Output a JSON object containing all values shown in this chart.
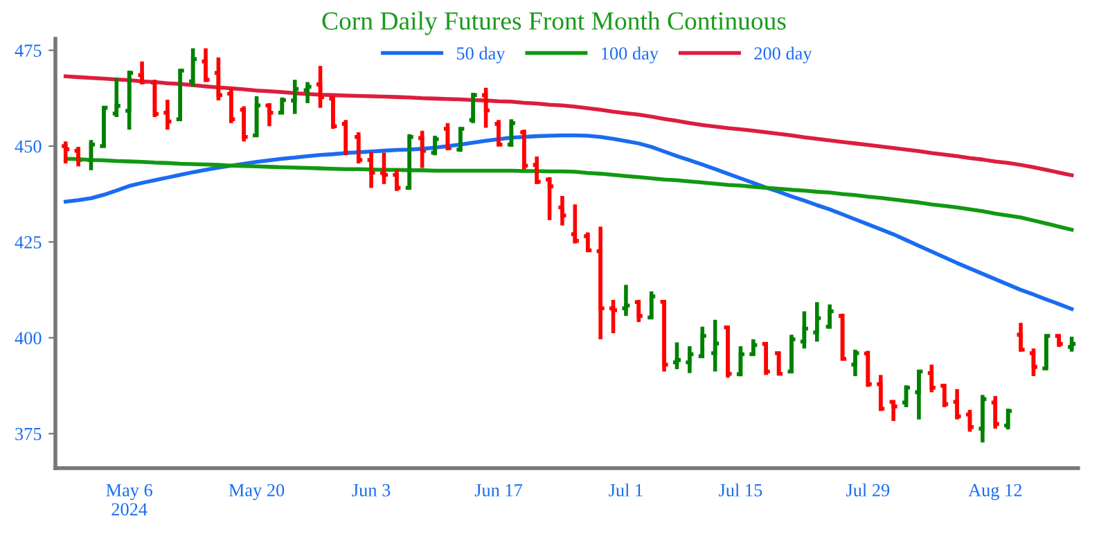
{
  "chart_data": {
    "type": "candlestick",
    "title": "Corn Daily Futures Front Month Continuous",
    "categories": [
      null,
      null,
      null,
      null,
      null,
      "May 6\n2024",
      null,
      null,
      null,
      null,
      null,
      null,
      null,
      null,
      null,
      "May 20",
      null,
      null,
      null,
      null,
      null,
      null,
      null,
      null,
      "Jun 3",
      null,
      null,
      null,
      null,
      null,
      null,
      null,
      null,
      null,
      "Jun 17",
      null,
      null,
      null,
      null,
      null,
      null,
      null,
      null,
      null,
      "Jul 1",
      null,
      null,
      null,
      null,
      null,
      null,
      null,
      null,
      "Jul 15",
      null,
      null,
      null,
      null,
      null,
      null,
      null,
      null,
      null,
      "Jul 29",
      null,
      null,
      null,
      null,
      null,
      null,
      null,
      null,
      null,
      "Aug 12",
      null,
      null,
      null,
      null,
      null,
      null
    ],
    "ohlc": [
      [
        450.0,
        451.2,
        445.5,
        449.2
      ],
      [
        448.8,
        449.8,
        444.7,
        446.4
      ],
      [
        446.4,
        451.6,
        443.7,
        450.4
      ],
      [
        450.0,
        460.3,
        449.8,
        460.0
      ],
      [
        458.5,
        467.9,
        457.6,
        460.5
      ],
      [
        459.2,
        469.7,
        454.3,
        469.1
      ],
      [
        468.5,
        472.1,
        466.1,
        466.7
      ],
      [
        466.6,
        467.3,
        457.6,
        458.4
      ],
      [
        458.7,
        462.1,
        454.3,
        456.4
      ],
      [
        457.0,
        470.1,
        456.8,
        469.7
      ],
      [
        466.9,
        475.5,
        465.5,
        472.7
      ],
      [
        472.1,
        475.5,
        466.7,
        467.3
      ],
      [
        469.1,
        473.1,
        461.9,
        463.3
      ],
      [
        463.7,
        465.1,
        456.0,
        457.0
      ],
      [
        459.5,
        460.4,
        451.2,
        452.4
      ],
      [
        452.8,
        463.0,
        452.4,
        460.6
      ],
      [
        460.6,
        461.2,
        455.2,
        458.7
      ],
      [
        458.7,
        462.7,
        458.4,
        462.0
      ],
      [
        461.9,
        467.3,
        458.4,
        464.9
      ],
      [
        464.6,
        466.7,
        461.2,
        465.5
      ],
      [
        466.1,
        470.9,
        460.0,
        462.8
      ],
      [
        462.4,
        463.0,
        454.5,
        455.2
      ],
      [
        455.8,
        456.8,
        447.6,
        448.3
      ],
      [
        452.4,
        453.6,
        445.5,
        446.4
      ],
      [
        446.4,
        448.5,
        439.1,
        443.1
      ],
      [
        443.0,
        448.3,
        440.1,
        442.5
      ],
      [
        442.5,
        443.9,
        438.3,
        439.1
      ],
      [
        439.1,
        453.1,
        438.9,
        452.4
      ],
      [
        452.1,
        454.0,
        444.3,
        448.8
      ],
      [
        448.3,
        452.7,
        447.6,
        451.8
      ],
      [
        454.5,
        456.0,
        448.9,
        449.5
      ],
      [
        449.1,
        454.8,
        448.5,
        454.5
      ],
      [
        456.8,
        463.9,
        456.0,
        463.3
      ],
      [
        463.3,
        465.2,
        454.8,
        459.3
      ],
      [
        455.8,
        456.8,
        449.9,
        450.4
      ],
      [
        450.4,
        457.0,
        449.8,
        456.0
      ],
      [
        453.6,
        454.3,
        443.9,
        444.9
      ],
      [
        445.1,
        447.3,
        440.1,
        440.7
      ],
      [
        441.3,
        441.9,
        430.7,
        439.5
      ],
      [
        434.0,
        437.0,
        429.3,
        431.9
      ],
      [
        427.0,
        434.8,
        424.6,
        425.3
      ],
      [
        426.5,
        427.5,
        422.5,
        422.8
      ],
      [
        422.6,
        429.0,
        399.6,
        407.7
      ],
      [
        407.7,
        409.9,
        401.2,
        407.2
      ],
      [
        407.7,
        413.8,
        405.7,
        408.4
      ],
      [
        409.3,
        409.9,
        404.1,
        405.7
      ],
      [
        405.3,
        412.1,
        405.1,
        410.8
      ],
      [
        409.4,
        409.9,
        391.2,
        393.0
      ],
      [
        393.6,
        398.8,
        391.8,
        394.2
      ],
      [
        393.6,
        397.8,
        390.8,
        395.7
      ],
      [
        395.2,
        402.9,
        394.8,
        400.5
      ],
      [
        396.0,
        404.7,
        391.2,
        398.5
      ],
      [
        402.7,
        402.9,
        389.6,
        390.6
      ],
      [
        390.5,
        397.8,
        390.0,
        395.7
      ],
      [
        395.7,
        399.6,
        395.4,
        398.1
      ],
      [
        398.4,
        398.8,
        390.3,
        391.2
      ],
      [
        396.0,
        396.4,
        390.3,
        390.6
      ],
      [
        391.2,
        400.8,
        390.8,
        399.6
      ],
      [
        399.0,
        406.9,
        397.2,
        402.4
      ],
      [
        401.4,
        409.3,
        399.0,
        405.1
      ],
      [
        402.9,
        408.7,
        402.4,
        406.9
      ],
      [
        405.7,
        406.3,
        394.2,
        394.5
      ],
      [
        393.0,
        396.9,
        390.0,
        396.0
      ],
      [
        395.9,
        396.6,
        387.2,
        387.9
      ],
      [
        387.9,
        390.3,
        380.9,
        381.5
      ],
      [
        383.3,
        383.6,
        378.3,
        382.1
      ],
      [
        383.1,
        387.6,
        381.9,
        387.0
      ],
      [
        385.8,
        391.6,
        378.7,
        391.2
      ],
      [
        390.8,
        393.0,
        385.8,
        387.0
      ],
      [
        387.5,
        387.9,
        381.9,
        382.7
      ],
      [
        383.3,
        386.6,
        378.7,
        379.5
      ],
      [
        380.0,
        381.2,
        375.5,
        376.7
      ],
      [
        376.3,
        385.1,
        372.7,
        384.0
      ],
      [
        383.1,
        384.8,
        376.3,
        377.5
      ],
      [
        377.1,
        381.5,
        376.1,
        380.9
      ],
      [
        400.8,
        403.9,
        396.4,
        396.9
      ],
      [
        396.0,
        397.2,
        390.0,
        392.4
      ],
      [
        392.0,
        400.5,
        391.8,
        400.5
      ],
      [
        400.5,
        400.8,
        397.6,
        398.4
      ],
      [
        397.6,
        400.3,
        396.4,
        398.4
      ]
    ],
    "colors": [
      "#ff0000",
      "#ff0000",
      "#008000",
      "#008000",
      "#008000",
      "#008000",
      "#ff0000",
      "#ff0000",
      "#ff0000",
      "#008000",
      "#008000",
      "#ff0000",
      "#ff0000",
      "#ff0000",
      "#ff0000",
      "#008000",
      "#ff0000",
      "#008000",
      "#008000",
      "#008000",
      "#ff0000",
      "#ff0000",
      "#ff0000",
      "#ff0000",
      "#ff0000",
      "#ff0000",
      "#ff0000",
      "#008000",
      "#ff0000",
      "#008000",
      "#ff0000",
      "#008000",
      "#008000",
      "#ff0000",
      "#ff0000",
      "#008000",
      "#ff0000",
      "#ff0000",
      "#ff0000",
      "#ff0000",
      "#ff0000",
      "#ff0000",
      "#ff0000",
      "#ff0000",
      "#008000",
      "#ff0000",
      "#008000",
      "#ff0000",
      "#008000",
      "#008000",
      "#008000",
      "#008000",
      "#ff0000",
      "#008000",
      "#008000",
      "#ff0000",
      "#ff0000",
      "#008000",
      "#008000",
      "#008000",
      "#008000",
      "#ff0000",
      "#008000",
      "#ff0000",
      "#ff0000",
      "#ff0000",
      "#008000",
      "#008000",
      "#ff0000",
      "#ff0000",
      "#ff0000",
      "#ff0000",
      "#008000",
      "#ff0000",
      "#008000",
      "#ff0000",
      "#ff0000",
      "#008000",
      "#ff0000",
      "#008000"
    ],
    "series": [
      {
        "name": "50 day",
        "type": "line",
        "color": "#1a6cf0",
        "values": [
          435.5,
          435.9,
          436.4,
          437.3,
          438.4,
          439.6,
          440.4,
          441.1,
          441.8,
          442.5,
          443.2,
          443.8,
          444.4,
          444.9,
          445.4,
          445.9,
          446.3,
          446.7,
          447.0,
          447.4,
          447.7,
          447.9,
          448.2,
          448.4,
          448.6,
          448.8,
          449.0,
          449.1,
          449.3,
          449.6,
          450.0,
          450.4,
          450.9,
          451.4,
          451.8,
          452.2,
          452.4,
          452.6,
          452.7,
          452.8,
          452.8,
          452.7,
          452.4,
          451.9,
          451.3,
          450.7,
          449.8,
          448.6,
          447.4,
          446.3,
          445.2,
          444.0,
          442.8,
          441.6,
          440.4,
          439.2,
          438.1,
          436.9,
          435.8,
          434.6,
          433.5,
          432.2,
          430.9,
          429.6,
          428.3,
          427.0,
          425.5,
          424.0,
          422.5,
          421.0,
          419.5,
          418.1,
          416.7,
          415.3,
          413.9,
          412.5,
          411.3,
          410.0,
          408.8,
          407.5
        ]
      },
      {
        "name": "100 day",
        "type": "line",
        "color": "#119911",
        "values": [
          446.7,
          446.6,
          446.4,
          446.3,
          446.1,
          446.0,
          445.9,
          445.7,
          445.6,
          445.4,
          445.3,
          445.2,
          445.1,
          444.9,
          444.8,
          444.7,
          444.6,
          444.5,
          444.4,
          444.3,
          444.2,
          444.1,
          444.0,
          444.0,
          443.9,
          443.8,
          443.8,
          443.7,
          443.7,
          443.6,
          443.6,
          443.6,
          443.6,
          443.6,
          443.6,
          443.6,
          443.5,
          443.5,
          443.4,
          443.4,
          443.3,
          443.0,
          442.8,
          442.5,
          442.2,
          441.9,
          441.6,
          441.3,
          441.1,
          440.8,
          440.5,
          440.2,
          439.9,
          439.7,
          439.4,
          439.1,
          438.9,
          438.6,
          438.4,
          438.1,
          437.9,
          437.5,
          437.2,
          436.8,
          436.5,
          436.1,
          435.7,
          435.3,
          434.8,
          434.4,
          434.0,
          433.5,
          433.0,
          432.4,
          431.9,
          431.4,
          430.6,
          429.8,
          429.0,
          428.2
        ]
      },
      {
        "name": "200 day",
        "type": "line",
        "color": "#dc1e3c",
        "values": [
          468.2,
          468.0,
          467.8,
          467.6,
          467.4,
          467.2,
          466.9,
          466.7,
          466.4,
          466.2,
          465.9,
          465.6,
          465.3,
          465.1,
          464.8,
          464.5,
          464.3,
          464.1,
          463.8,
          463.6,
          463.4,
          463.3,
          463.2,
          463.1,
          463.0,
          462.9,
          462.8,
          462.7,
          462.5,
          462.4,
          462.3,
          462.2,
          462.0,
          461.9,
          461.7,
          461.6,
          461.3,
          461.1,
          460.8,
          460.6,
          460.3,
          459.9,
          459.5,
          459.0,
          458.6,
          458.2,
          457.7,
          457.1,
          456.6,
          456.0,
          455.5,
          455.1,
          454.7,
          454.4,
          454.0,
          453.6,
          453.2,
          452.8,
          452.3,
          451.9,
          451.5,
          451.1,
          450.7,
          450.3,
          449.9,
          449.5,
          449.1,
          448.7,
          448.2,
          447.8,
          447.4,
          446.9,
          446.5,
          446.0,
          445.6,
          445.1,
          444.5,
          443.8,
          443.1,
          442.4
        ]
      }
    ],
    "ylim": [
      366,
      478
    ],
    "yticks": [
      375,
      400,
      425,
      450,
      475
    ],
    "grid": false,
    "legend": "top"
  }
}
